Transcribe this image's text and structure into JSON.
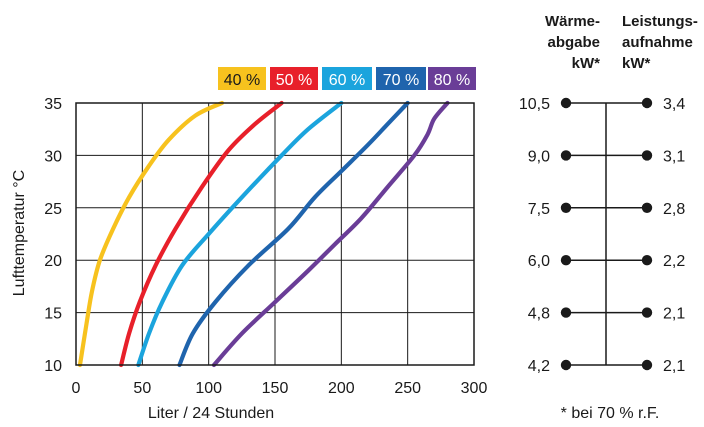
{
  "chart_data": [
    {
      "type": "line",
      "title": "",
      "xlabel": "Liter / 24 Stunden",
      "ylabel": "Lufttemperatur °C",
      "xlim": [
        0,
        300
      ],
      "ylim": [
        10,
        35
      ],
      "x_ticks": [
        "0",
        "50",
        "100",
        "150",
        "200",
        "250",
        "300"
      ],
      "y_ticks": [
        "10",
        "15",
        "20",
        "25",
        "30",
        "35"
      ],
      "grid": true,
      "legend_position": "top-right, above plot",
      "series": [
        {
          "name": "40 %",
          "color": "#f7c21e",
          "points": [
            [
              3,
              10
            ],
            [
              8,
              14
            ],
            [
              12,
              17
            ],
            [
              18,
              20
            ],
            [
              28,
              23
            ],
            [
              40,
              26
            ],
            [
              55,
              29
            ],
            [
              70,
              31.5
            ],
            [
              90,
              33.8
            ],
            [
              110,
              35
            ]
          ]
        },
        {
          "name": "50 %",
          "color": "#e8202a",
          "points": [
            [
              34,
              10
            ],
            [
              40,
              13
            ],
            [
              48,
              16
            ],
            [
              60,
              19.5
            ],
            [
              75,
              23
            ],
            [
              95,
              27
            ],
            [
              115,
              30.5
            ],
            [
              135,
              33
            ],
            [
              155,
              35
            ]
          ]
        },
        {
          "name": "60 %",
          "color": "#1ba4dd",
          "points": [
            [
              47,
              10
            ],
            [
              55,
              13
            ],
            [
              65,
              16
            ],
            [
              80,
              19.5
            ],
            [
              100,
              22.5
            ],
            [
              125,
              26
            ],
            [
              155,
              30
            ],
            [
              175,
              32.5
            ],
            [
              200,
              35
            ]
          ]
        },
        {
          "name": "70 %",
          "color": "#1f64ad",
          "points": [
            [
              78,
              10
            ],
            [
              88,
              13
            ],
            [
              105,
              16
            ],
            [
              130,
              19.5
            ],
            [
              160,
              23
            ],
            [
              180,
              26
            ],
            [
              200,
              28.5
            ],
            [
              220,
              31
            ],
            [
              235,
              33
            ],
            [
              250,
              35
            ]
          ]
        },
        {
          "name": "80 %",
          "color": "#6a3d97",
          "points": [
            [
              104,
              10
            ],
            [
              125,
              13
            ],
            [
              150,
              16
            ],
            [
              175,
              19
            ],
            [
              195,
              21.5
            ],
            [
              215,
              24
            ],
            [
              235,
              27
            ],
            [
              255,
              30
            ],
            [
              265,
              32
            ],
            [
              270,
              33.5
            ],
            [
              280,
              35
            ]
          ]
        }
      ]
    },
    {
      "type": "table",
      "headers": {
        "left": [
          "Wärme-",
          "abgabe",
          "kW*"
        ],
        "right": [
          "Leistungs-",
          "aufnahme",
          "kW*"
        ]
      },
      "rows": [
        {
          "temperature": 35,
          "waerme": "10,5",
          "leistung": "3,4"
        },
        {
          "temperature": 30,
          "waerme": "9,0",
          "leistung": "3,1"
        },
        {
          "temperature": 25,
          "waerme": "7,5",
          "leistung": "2,8"
        },
        {
          "temperature": 20,
          "waerme": "6,0",
          "leistung": "2,2"
        },
        {
          "temperature": 15,
          "waerme": "4,8",
          "leistung": "2,1"
        },
        {
          "temperature": 10,
          "waerme": "4,2",
          "leistung": "2,1"
        }
      ],
      "footnote": "* bei 70 % r.F."
    }
  ]
}
